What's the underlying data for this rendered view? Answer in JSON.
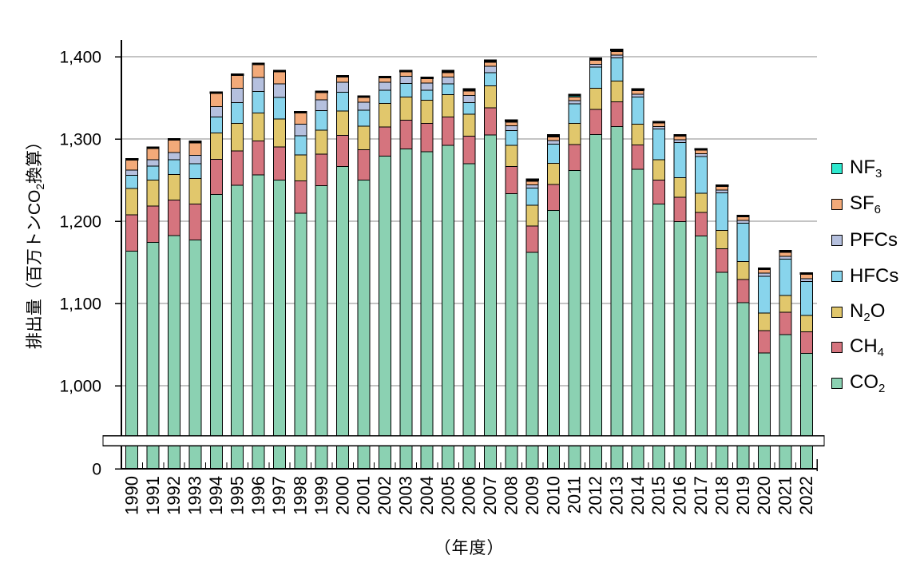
{
  "chart_data": {
    "type": "bar",
    "stacked": true,
    "title": "",
    "xlabel": "（年度）",
    "ylabel": "排出量（百万トンCO2換算）",
    "ylabel_parts": [
      {
        "t": "排出量（百万トンCO"
      },
      {
        "t": "2",
        "sub": true
      },
      {
        "t": "換算）"
      }
    ],
    "unit": "百万トンCO2換算",
    "years": [
      "1990",
      "1991",
      "1992",
      "1993",
      "1994",
      "1995",
      "1996",
      "1997",
      "1998",
      "1999",
      "2000",
      "2001",
      "2002",
      "2003",
      "2004",
      "2005",
      "2006",
      "2007",
      "2008",
      "2009",
      "2010",
      "2011",
      "2012",
      "2013",
      "2014",
      "2015",
      "2016",
      "2017",
      "2018",
      "2019",
      "2020",
      "2021",
      "2022"
    ],
    "y_ticks": [
      "1,400",
      "1,300",
      "1,200",
      "1,100",
      "1,000",
      "0"
    ],
    "y_gridlines": [
      1400,
      1300,
      1200,
      1100,
      1000
    ],
    "y_axis": {
      "axis_break": true,
      "upper_min": 1000,
      "upper_max": 1400,
      "zero_label": "0"
    },
    "series": [
      {
        "id": "co2",
        "label": "CO2",
        "label_parts": [
          {
            "t": "CO"
          },
          {
            "t": "2",
            "sub": true
          }
        ],
        "color": "#8BD1B2",
        "values": [
          1163.5,
          1174.4,
          1182.3,
          1177.3,
          1232.6,
          1243.6,
          1256.4,
          1250.0,
          1209.7,
          1243.1,
          1266.7,
          1250.2,
          1279.1,
          1287.7,
          1284.3,
          1292.4,
          1269.7,
          1304.7,
          1233.6,
          1162.0,
          1213.0,
          1261.8,
          1305.1,
          1315.0,
          1262.9,
          1220.7,
          1199.7,
          1181.8,
          1138.1,
          1101.2,
          1039.8,
          1062.3,
          1039.1
        ]
      },
      {
        "id": "ch4",
        "label": "CH4",
        "label_parts": [
          {
            "t": "CH"
          },
          {
            "t": "4",
            "sub": true
          }
        ],
        "color": "#D5747E",
        "values": [
          44.4,
          44.1,
          43.6,
          43.5,
          42.5,
          42.0,
          41.3,
          40.4,
          39.1,
          38.3,
          37.5,
          36.5,
          35.7,
          35.1,
          34.6,
          34.3,
          33.7,
          33.3,
          32.7,
          32.2,
          31.9,
          31.4,
          30.9,
          30.0,
          30.0,
          29.5,
          29.4,
          28.9,
          28.4,
          28.1,
          27.4,
          26.9,
          26.3
        ]
      },
      {
        "id": "n2o",
        "label": "N2O",
        "label_parts": [
          {
            "t": "N"
          },
          {
            "t": "2",
            "sub": true
          },
          {
            "t": "O"
          }
        ],
        "color": "#E1C76C",
        "values": [
          31.8,
          31.5,
          31.1,
          30.9,
          32.4,
          33.3,
          33.9,
          33.9,
          31.9,
          29.1,
          29.9,
          28.9,
          28.6,
          28.4,
          28.1,
          27.3,
          26.9,
          26.5,
          25.9,
          25.3,
          25.7,
          25.7,
          25.5,
          25.5,
          24.9,
          24.7,
          23.6,
          23.2,
          22.4,
          21.7,
          21.0,
          20.7,
          20.2
        ]
      },
      {
        "id": "hfcs",
        "label": "HFCs",
        "label_parts": [
          {
            "t": "HFCs"
          }
        ],
        "color": "#88D4EC",
        "values": [
          15.9,
          17.0,
          17.7,
          18.2,
          19.4,
          25.2,
          26.4,
          26.0,
          23.4,
          24.1,
          22.8,
          19.4,
          16.0,
          16.1,
          12.2,
          12.8,
          13.8,
          15.9,
          18.1,
          20.7,
          23.3,
          24.0,
          26.0,
          28.0,
          33.0,
          37.0,
          43.0,
          44.5,
          45.5,
          46.5,
          45.0,
          44.0,
          41.0
        ]
      },
      {
        "id": "pfcs",
        "label": "PFCs",
        "label_parts": [
          {
            "t": "PFCs"
          }
        ],
        "color": "#B5C0DE",
        "values": [
          6.5,
          7.9,
          9.0,
          10.2,
          12.3,
          17.5,
          16.8,
          16.7,
          14.1,
          12.9,
          11.8,
          9.6,
          9.4,
          9.0,
          9.0,
          8.6,
          9.0,
          8.0,
          5.7,
          4.0,
          4.2,
          3.8,
          3.4,
          3.3,
          3.4,
          3.3,
          3.4,
          3.5,
          3.5,
          3.4,
          3.5,
          3.6,
          3.7
        ]
      },
      {
        "id": "sf6",
        "label": "SF6",
        "label_parts": [
          {
            "t": "SF"
          },
          {
            "t": "6",
            "sub": true
          }
        ],
        "color": "#F3AA79",
        "values": [
          12.9,
          14.0,
          15.1,
          15.7,
          16.6,
          16.2,
          15.9,
          14.7,
          13.5,
          9.2,
          7.0,
          6.1,
          5.7,
          5.3,
          5.2,
          5.1,
          5.3,
          4.9,
          4.2,
          4.4,
          4.4,
          4.5,
          4.5,
          4.6,
          4.7,
          4.2,
          4.3,
          4.5,
          4.6,
          4.7,
          4.9,
          5.1,
          5.3
        ]
      },
      {
        "id": "nf3",
        "label": "NF3",
        "label_parts": [
          {
            "t": "NF"
          },
          {
            "t": "3",
            "sub": true
          }
        ],
        "color": "#2EE9CF",
        "values": [
          0.0,
          0.1,
          0.2,
          0.2,
          0.2,
          0.2,
          0.3,
          0.3,
          0.3,
          0.3,
          0.3,
          0.3,
          0.5,
          0.4,
          0.6,
          1.5,
          1.6,
          1.7,
          1.8,
          1.4,
          1.5,
          1.8,
          1.6,
          1.6,
          1.1,
          0.6,
          0.6,
          0.6,
          0.5,
          0.4,
          0.4,
          0.4,
          0.4
        ]
      }
    ],
    "legend_top_to_bottom": [
      "nf3",
      "sf6",
      "pfcs",
      "hfcs",
      "n2o",
      "ch4",
      "co2"
    ],
    "legend_position": "right",
    "colors": {
      "grid": "#8A8A8A",
      "axis": "#000000",
      "bar_outline": "#000000",
      "background": "#FFFFFF"
    }
  }
}
